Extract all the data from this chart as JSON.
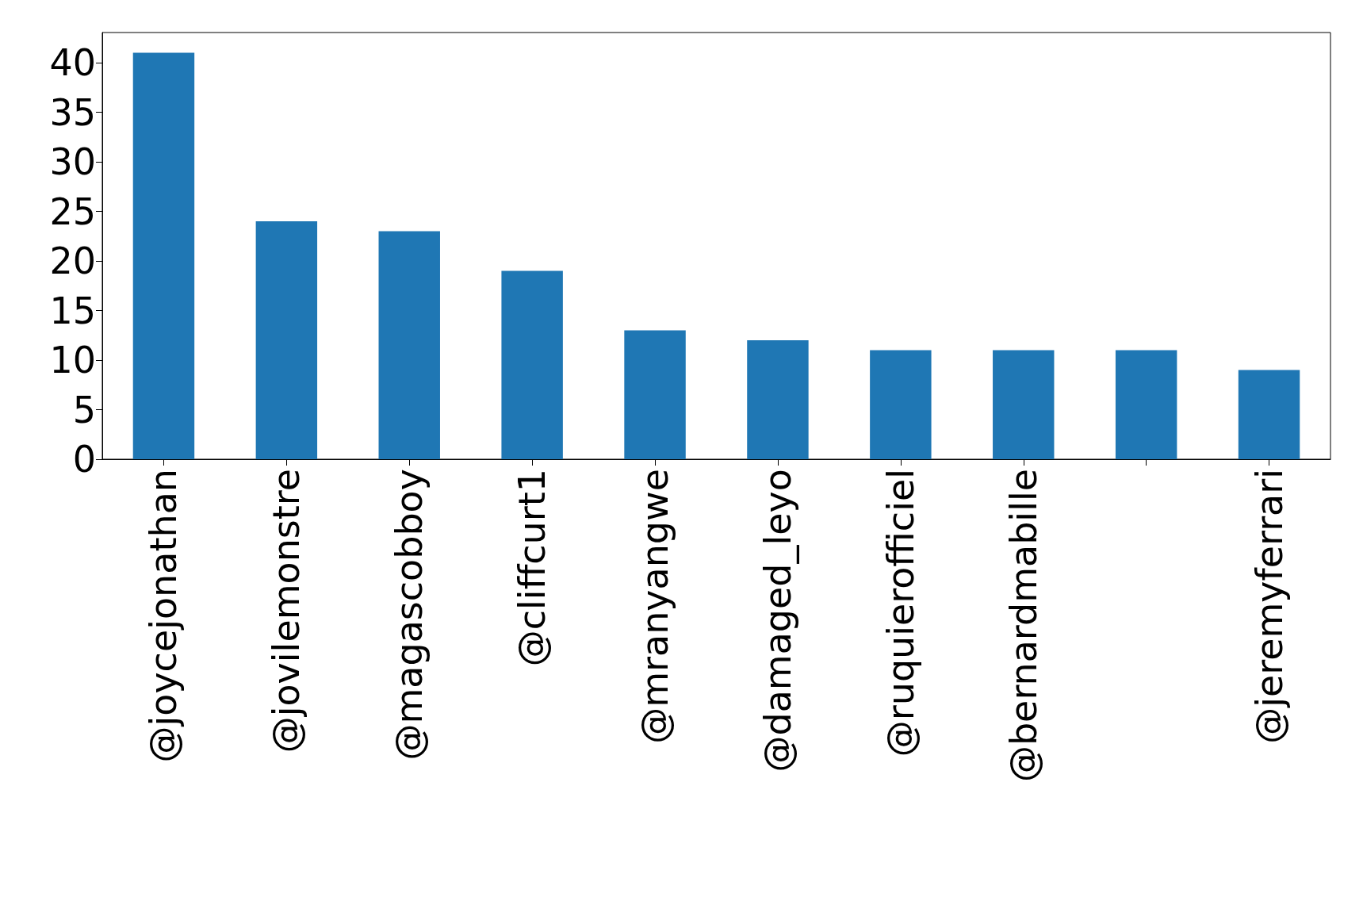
{
  "chart_data": {
    "type": "bar",
    "categories": [
      "@joycejonathan",
      "@jovilemonstre",
      "@magascobboy",
      "@cliffcurt1",
      "@mranyangwe",
      "@damaged_leyo",
      "@ruquierofficiel",
      "@bernardmabille",
      null,
      "@jeremyferrari"
    ],
    "values": [
      41,
      24,
      23,
      19,
      13,
      12,
      11,
      11,
      11,
      9
    ],
    "color": "#1f77b4",
    "ylim": [
      0,
      43.05
    ],
    "yticks": [
      0,
      5,
      10,
      15,
      20,
      25,
      30,
      35,
      40
    ],
    "grid": false
  }
}
